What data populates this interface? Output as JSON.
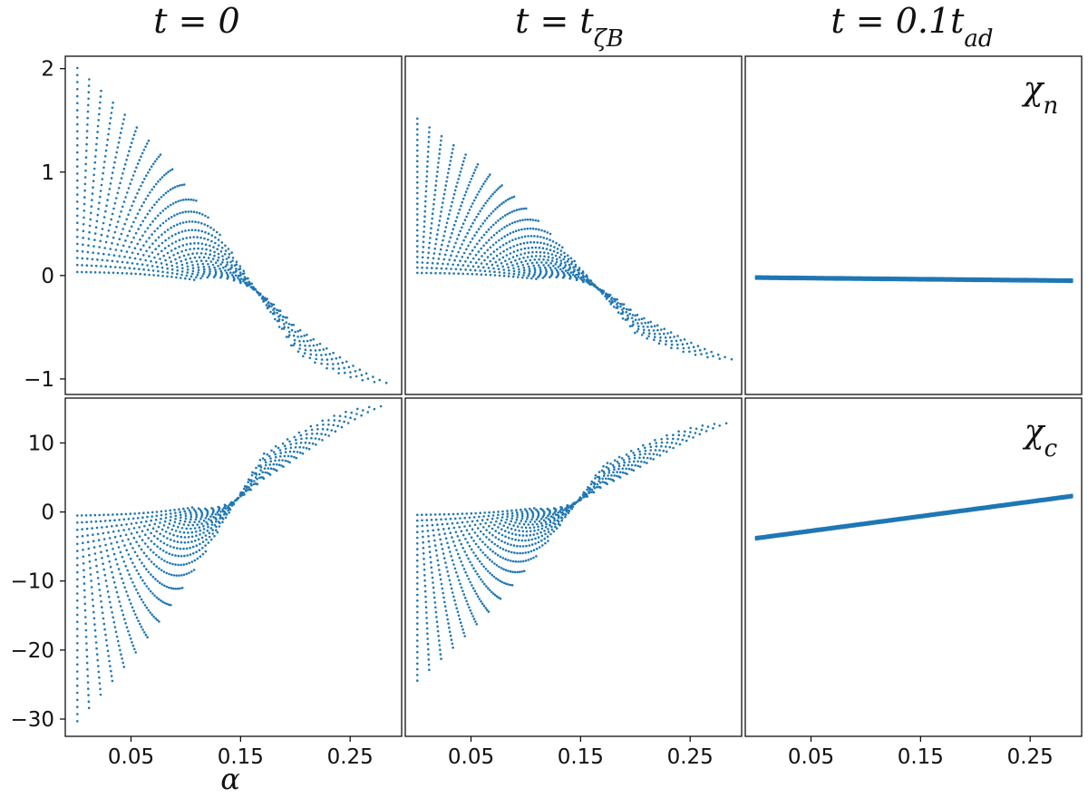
{
  "chart_data": {
    "type": "scatter",
    "layout": "2 rows x 3 columns, shared x axis",
    "columns": [
      {
        "title_main": "t = 0",
        "title_sub": ""
      },
      {
        "title_main": "t = t",
        "title_sub": "ζB"
      },
      {
        "title_main": "t = 0.1t",
        "title_sub": "ad"
      }
    ],
    "xlabel": "α",
    "xlim": [
      -0.01,
      0.297
    ],
    "xticks": [
      "0.05",
      "0.15",
      "0.25"
    ],
    "xtick_values": [
      0.05,
      0.15,
      0.25
    ],
    "color": "#1f77b4",
    "rows": [
      {
        "name": "χ",
        "name_sub": "n",
        "ylim": [
          -1.15,
          2.12
        ],
        "yticks": [
          "2",
          "1",
          "0",
          "−1"
        ],
        "ytick_values": [
          2,
          1,
          0,
          -1
        ],
        "panels": [
          {
            "column": 0,
            "min_range": [
              -1.05,
              0.0
            ],
            "max_range": [
              0.0,
              2.05
            ],
            "peak_alpha_min": 0.285,
            "peak_alpha_max": 0.0
          },
          {
            "column": 1,
            "min_range": [
              -0.82,
              0.0
            ],
            "max_range": [
              0.0,
              1.55
            ],
            "peak_alpha_min": 0.29,
            "peak_alpha_max": 0.0
          },
          {
            "column": 2,
            "line_y_at_alpha_0": -0.02,
            "line_y_at_alpha_max": -0.05
          }
        ]
      },
      {
        "name": "χ",
        "name_sub": "c",
        "ylim": [
          -32.5,
          16.5
        ],
        "yticks": [
          "10",
          "0",
          "−10",
          "−20",
          "−30"
        ],
        "ytick_values": [
          10,
          0,
          -10,
          -20,
          -30
        ],
        "panels": [
          {
            "column": 0,
            "min_range": [
              -31.0,
              0.0
            ],
            "max_range": [
              0.0,
              15.5
            ],
            "peak_alpha_min": 0.0,
            "peak_alpha_max": 0.28
          },
          {
            "column": 1,
            "min_range": [
              -25.0,
              0.0
            ],
            "max_range": [
              0.0,
              13.0
            ],
            "peak_alpha_min": 0.0,
            "peak_alpha_max": 0.285
          },
          {
            "column": 2,
            "line_y_at_alpha_0": -3.8,
            "line_y_at_alpha_max": 2.3
          }
        ]
      }
    ]
  }
}
